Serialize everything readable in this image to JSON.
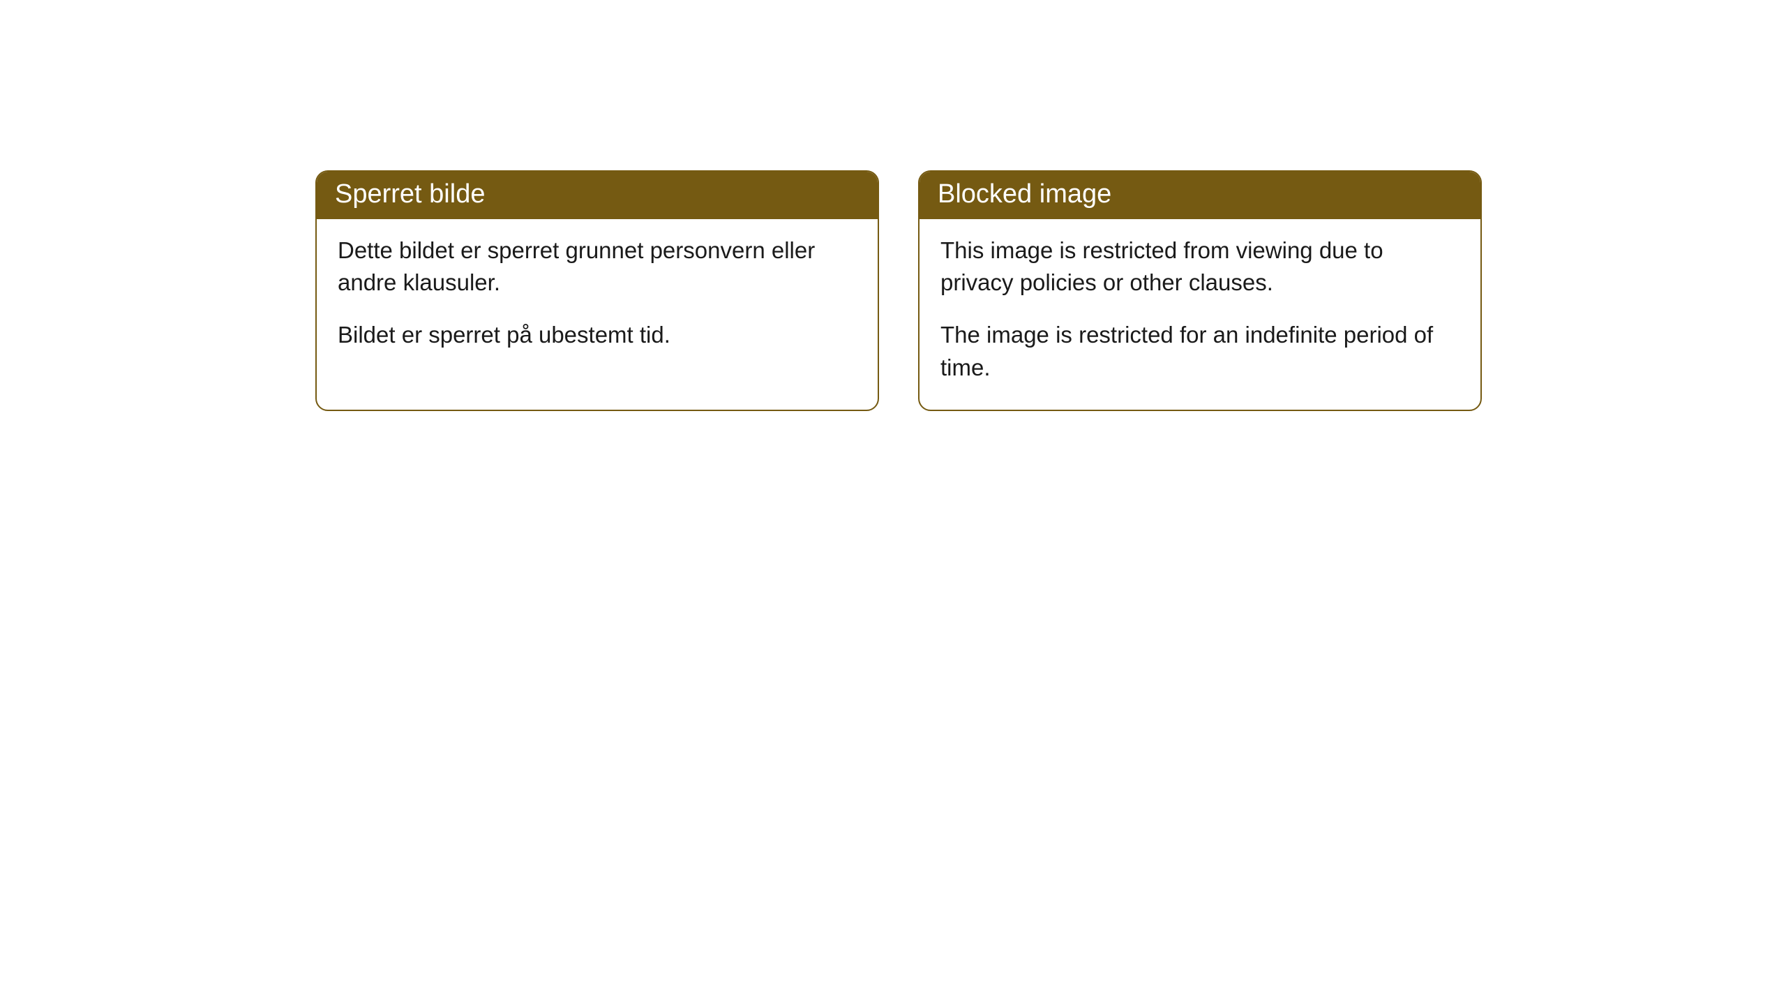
{
  "cards": [
    {
      "header": "Sperret bilde",
      "paragraph1": "Dette bildet er sperret grunnet personvern eller andre klausuler.",
      "paragraph2": "Bildet er sperret på ubestemt tid."
    },
    {
      "header": "Blocked image",
      "paragraph1": "This image is restricted from viewing due to privacy policies or other clauses.",
      "paragraph2": "The image is restricted for an indefinite period of time."
    }
  ],
  "styling": {
    "header_bg_color": "#755a12",
    "header_text_color": "#ffffff",
    "border_color": "#755a12",
    "body_text_color": "#1a1a1a",
    "card_bg_color": "#ffffff",
    "page_bg_color": "#ffffff",
    "border_radius": 18,
    "header_font_size": 38,
    "body_font_size": 33
  }
}
